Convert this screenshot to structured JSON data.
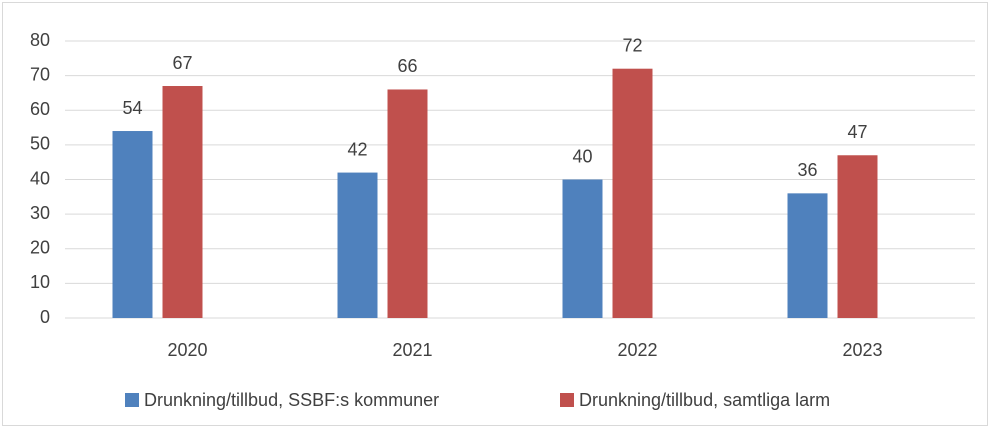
{
  "chart_data": {
    "type": "bar",
    "categories": [
      "2020",
      "2021",
      "2022",
      "2023"
    ],
    "series": [
      {
        "name": "Drunkning/tillbud, SSBF:s kommuner",
        "color": "#4f81bd",
        "values": [
          54,
          42,
          40,
          36
        ]
      },
      {
        "name": "Drunkning/tillbud, samtliga larm",
        "color": "#c0504d",
        "values": [
          67,
          66,
          72,
          47
        ]
      }
    ],
    "ylim": [
      0,
      80
    ],
    "yticks": [
      0,
      10,
      20,
      30,
      40,
      50,
      60,
      70,
      80
    ],
    "grid": true,
    "legend": "bottom"
  }
}
